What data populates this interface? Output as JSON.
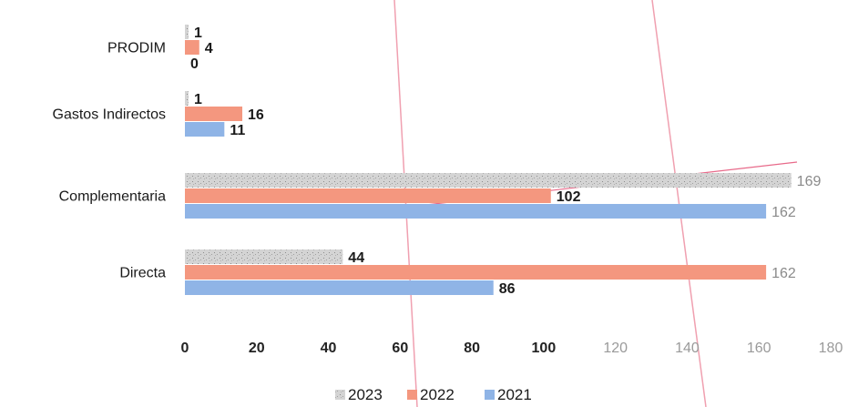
{
  "chart_data": {
    "type": "bar",
    "orientation": "horizontal",
    "categories": [
      "PRODIM",
      "Gastos Indirectos",
      "Complementaria",
      "Directa"
    ],
    "series": [
      {
        "name": "2023",
        "values": [
          1,
          1,
          169,
          44
        ],
        "color": "#c8c8c8"
      },
      {
        "name": "2022",
        "values": [
          4,
          16,
          102,
          162
        ],
        "color": "#f4977f"
      },
      {
        "name": "2021",
        "values": [
          0,
          11,
          162,
          86
        ],
        "color": "#8fb4e6"
      }
    ],
    "data_labels": [
      [
        "1",
        "4",
        "0"
      ],
      [
        "1",
        "16",
        "11"
      ],
      [
        "169",
        "102",
        "162"
      ],
      [
        "44",
        "162",
        "86"
      ]
    ],
    "xticks": [
      "0",
      "20",
      "40",
      "60",
      "80",
      "100",
      "120",
      "140",
      "160",
      "180"
    ],
    "xlim": [
      0,
      180
    ],
    "legend": {
      "position": "bottom",
      "entries": [
        "2023",
        "2022",
        "2021"
      ]
    },
    "grid": false,
    "title": "",
    "xlabel": "",
    "ylabel": ""
  }
}
